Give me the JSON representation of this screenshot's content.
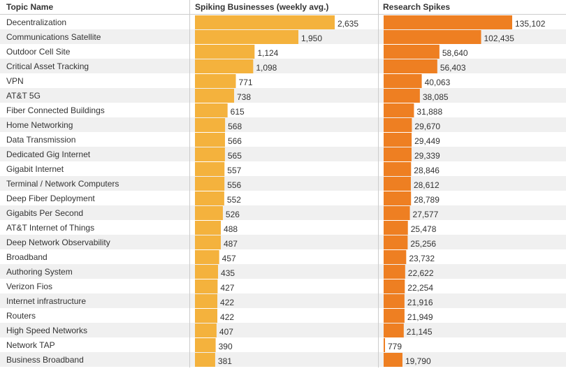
{
  "chart_data": {
    "type": "bar",
    "columns": {
      "topic": "Topic Name",
      "spiking": "Spiking Businesses (weekly avg.)",
      "research": "Research Spikes"
    },
    "colors": {
      "spiking_bar": "#f4b23d",
      "research_bar": "#ee7f22",
      "row_alt": "#f0f0f0",
      "divider": "#cccccc"
    },
    "categories": [
      "Decentralization",
      "Communications Satellite",
      "Outdoor Cell Site",
      "Critical Asset Tracking",
      "VPN",
      "AT&T 5G",
      "Fiber Connected Buildings",
      "Home Networking",
      "Data Transmission",
      "Dedicated Gig Internet",
      "Gigabit Internet",
      "Terminal / Network Computers",
      "Deep Fiber Deployment",
      "Gigabits Per Second",
      "AT&T Internet of Things",
      "Deep Network Observability",
      "Broadband",
      "Authoring System",
      "Verizon Fios",
      "Internet infrastructure",
      "Routers",
      "High Speed Networks",
      "Network TAP",
      "Business Broadband"
    ],
    "series": [
      {
        "name": "Spiking Businesses (weekly avg.)",
        "values": [
          2635,
          1950,
          1124,
          1098,
          771,
          738,
          615,
          568,
          566,
          565,
          557,
          556,
          552,
          526,
          488,
          487,
          457,
          435,
          427,
          422,
          422,
          407,
          390,
          381
        ],
        "labels": [
          "2,635",
          "1,950",
          "1,124",
          "1,098",
          "771",
          "738",
          "615",
          "568",
          "566",
          "565",
          "557",
          "556",
          "552",
          "526",
          "488",
          "487",
          "457",
          "435",
          "427",
          "422",
          "422",
          "407",
          "390",
          "381"
        ]
      },
      {
        "name": "Research Spikes",
        "values": [
          135102,
          102435,
          58640,
          56403,
          40063,
          38085,
          31888,
          29670,
          29449,
          29339,
          28846,
          28612,
          28789,
          27577,
          25478,
          25256,
          23732,
          22622,
          22254,
          21916,
          21949,
          21145,
          779,
          19790
        ],
        "labels": [
          "135,102",
          "102,435",
          "58,640",
          "56,403",
          "40,063",
          "38,085",
          "31,888",
          "29,670",
          "29,449",
          "29,339",
          "28,846",
          "28,612",
          "28,789",
          "27,577",
          "25,478",
          "25,256",
          "23,732",
          "22,622",
          "22,254",
          "21,916",
          "21,949",
          "21,145",
          "779",
          "19,790"
        ]
      }
    ]
  }
}
